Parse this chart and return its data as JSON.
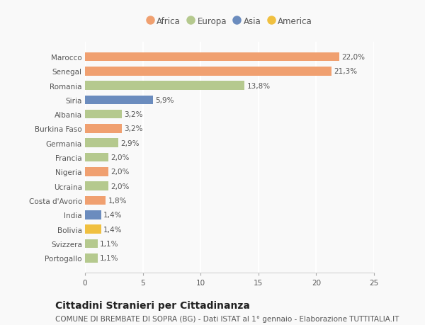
{
  "countries": [
    "Portogallo",
    "Svizzera",
    "Bolivia",
    "India",
    "Costa d'Avorio",
    "Ucraina",
    "Nigeria",
    "Francia",
    "Germania",
    "Burkina Faso",
    "Albania",
    "Siria",
    "Romania",
    "Senegal",
    "Marocco"
  ],
  "values": [
    1.1,
    1.1,
    1.4,
    1.4,
    1.8,
    2.0,
    2.0,
    2.0,
    2.9,
    3.2,
    3.2,
    5.9,
    13.8,
    21.3,
    22.0
  ],
  "labels": [
    "1,1%",
    "1,1%",
    "1,4%",
    "1,4%",
    "1,8%",
    "2,0%",
    "2,0%",
    "2,0%",
    "2,9%",
    "3,2%",
    "3,2%",
    "5,9%",
    "13,8%",
    "21,3%",
    "22,0%"
  ],
  "colors": [
    "#b5c98e",
    "#b5c98e",
    "#f0c040",
    "#6b8cbe",
    "#f0a070",
    "#b5c98e",
    "#f0a070",
    "#b5c98e",
    "#b5c98e",
    "#f0a070",
    "#b5c98e",
    "#6b8cbe",
    "#b5c98e",
    "#f0a070",
    "#f0a070"
  ],
  "legend": [
    {
      "label": "Africa",
      "color": "#f0a070"
    },
    {
      "label": "Europa",
      "color": "#b5c98e"
    },
    {
      "label": "Asia",
      "color": "#6b8cbe"
    },
    {
      "label": "America",
      "color": "#f0c040"
    }
  ],
  "title": "Cittadini Stranieri per Cittadinanza",
  "subtitle": "COMUNE DI BREMBATE DI SOPRA (BG) - Dati ISTAT al 1° gennaio - Elaborazione TUTTITALIA.IT",
  "xlim": [
    0,
    25
  ],
  "xticks": [
    0,
    5,
    10,
    15,
    20,
    25
  ],
  "background_color": "#f9f9f9",
  "bar_height": 0.62,
  "title_fontsize": 10,
  "subtitle_fontsize": 7.5,
  "label_fontsize": 7.5,
  "tick_fontsize": 7.5,
  "legend_fontsize": 8.5
}
